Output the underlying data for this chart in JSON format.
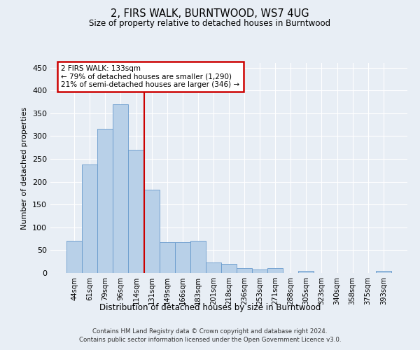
{
  "title": "2, FIRS WALK, BURNTWOOD, WS7 4UG",
  "subtitle": "Size of property relative to detached houses in Burntwood",
  "xlabel": "Distribution of detached houses by size in Burntwood",
  "ylabel": "Number of detached properties",
  "bar_labels": [
    "44sqm",
    "61sqm",
    "79sqm",
    "96sqm",
    "114sqm",
    "131sqm",
    "149sqm",
    "166sqm",
    "183sqm",
    "201sqm",
    "218sqm",
    "236sqm",
    "253sqm",
    "271sqm",
    "288sqm",
    "305sqm",
    "323sqm",
    "340sqm",
    "358sqm",
    "375sqm",
    "393sqm"
  ],
  "bar_values": [
    70,
    237,
    316,
    370,
    270,
    183,
    68,
    68,
    70,
    23,
    20,
    10,
    7,
    10,
    0,
    4,
    0,
    0,
    0,
    0,
    4
  ],
  "bar_color": "#b8d0e8",
  "bar_edge_color": "#6699cc",
  "vline_index": 5,
  "vline_color": "#cc0000",
  "annotation_line1": "2 FIRS WALK: 133sqm",
  "annotation_line2": "← 79% of detached houses are smaller (1,290)",
  "annotation_line3": "21% of semi-detached houses are larger (346) →",
  "annotation_box_color": "#ffffff",
  "annotation_box_edge": "#cc0000",
  "ylim": [
    0,
    460
  ],
  "yticks": [
    0,
    50,
    100,
    150,
    200,
    250,
    300,
    350,
    400,
    450
  ],
  "footer": "Contains HM Land Registry data © Crown copyright and database right 2024.\nContains public sector information licensed under the Open Government Licence v3.0.",
  "bg_color": "#e8eef5",
  "plot_bg_color": "#e8eef5"
}
